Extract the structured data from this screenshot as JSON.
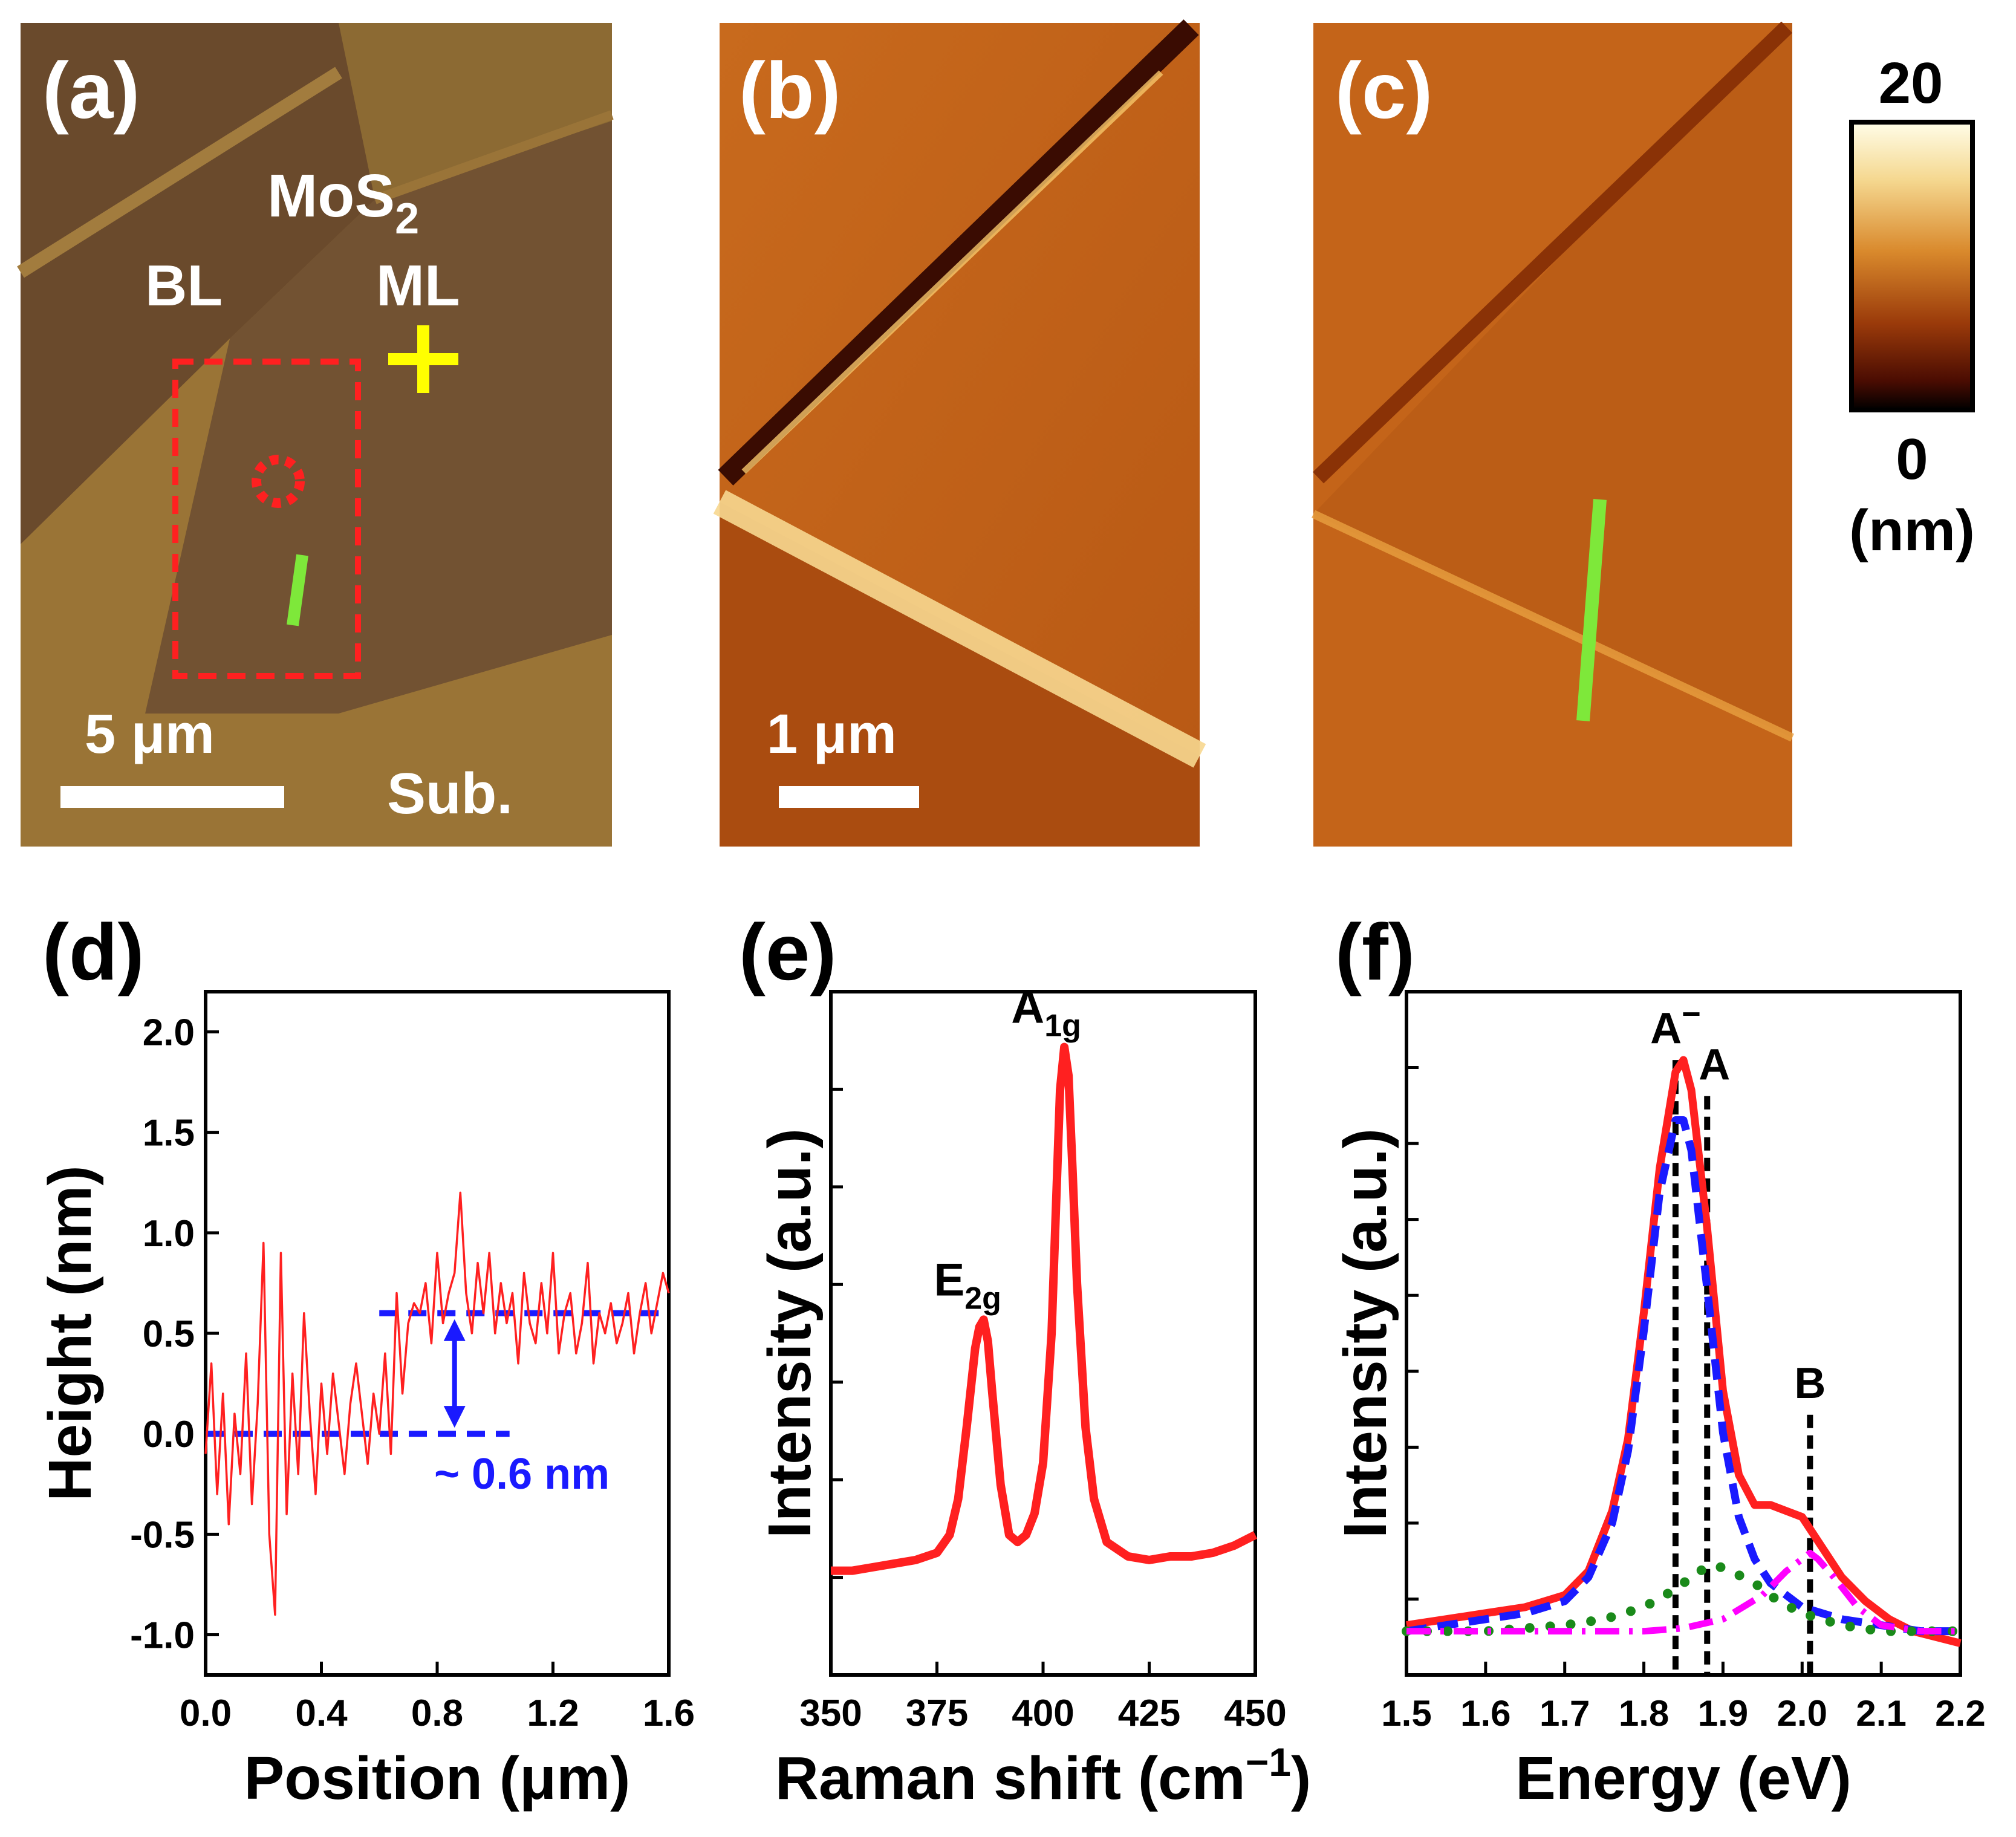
{
  "figure": {
    "panels": {
      "a": {
        "label": "(a)",
        "material": "MoS",
        "material_sub": "2",
        "bl": "BL",
        "ml": "ML",
        "sub": "Sub.",
        "scale": "5 μm"
      },
      "b": {
        "label": "(b)",
        "scale": "1 μm"
      },
      "c": {
        "label": "(c)"
      },
      "colorbar": {
        "max": "20",
        "min": "0",
        "unit": "(nm)"
      },
      "d": {
        "label": "(d)",
        "annotation": "~ 0.6 nm"
      },
      "e": {
        "label": "(e)"
      },
      "f": {
        "label": "(f)"
      }
    },
    "colors": {
      "image_bg_a": "#8a6530",
      "afm_bg": "#c46419",
      "red": "#ff2020",
      "blue": "#1a1aff",
      "green": "#1a8a1a",
      "magenta": "#ff00ff",
      "yellow": "#ffff00",
      "lime": "#7ee83a"
    }
  },
  "chart_data": [
    {
      "type": "line",
      "panel": "d",
      "title": "",
      "xlabel": "Position (μm)",
      "ylabel": "Height (nm)",
      "xlim": [
        0.0,
        1.6
      ],
      "ylim": [
        -1.2,
        2.2
      ],
      "xticks": [
        "0.0",
        "0.4",
        "0.8",
        "1.2",
        "1.6"
      ],
      "yticks": [
        "-1.0",
        "-0.5",
        "0.0",
        "0.5",
        "1.0",
        "1.5",
        "2.0"
      ],
      "series": [
        {
          "name": "height profile",
          "x": [
            0.0,
            0.02,
            0.04,
            0.06,
            0.08,
            0.1,
            0.12,
            0.14,
            0.16,
            0.18,
            0.2,
            0.22,
            0.24,
            0.26,
            0.28,
            0.3,
            0.32,
            0.34,
            0.36,
            0.38,
            0.4,
            0.42,
            0.44,
            0.46,
            0.48,
            0.5,
            0.52,
            0.54,
            0.56,
            0.58,
            0.6,
            0.62,
            0.64,
            0.66,
            0.68,
            0.7,
            0.72,
            0.74,
            0.76,
            0.78,
            0.8,
            0.82,
            0.84,
            0.86,
            0.88,
            0.9,
            0.92,
            0.94,
            0.96,
            0.98,
            1.0,
            1.02,
            1.04,
            1.06,
            1.08,
            1.1,
            1.12,
            1.14,
            1.16,
            1.18,
            1.2,
            1.22,
            1.24,
            1.26,
            1.28,
            1.3,
            1.32,
            1.34,
            1.36,
            1.38,
            1.4,
            1.42,
            1.44,
            1.46,
            1.48,
            1.5,
            1.52,
            1.54,
            1.56,
            1.58,
            1.6
          ],
          "values": [
            -0.1,
            0.35,
            -0.3,
            0.2,
            -0.45,
            0.1,
            -0.2,
            0.4,
            -0.35,
            0.15,
            0.95,
            -0.5,
            -0.9,
            0.9,
            -0.4,
            0.3,
            -0.2,
            0.6,
            0.1,
            -0.3,
            0.25,
            -0.1,
            0.3,
            0.05,
            -0.2,
            0.15,
            0.35,
            0.1,
            -0.15,
            0.2,
            0.0,
            0.4,
            -0.1,
            0.7,
            0.2,
            0.55,
            0.65,
            0.6,
            0.75,
            0.45,
            0.9,
            0.55,
            0.7,
            0.8,
            1.2,
            0.7,
            0.5,
            0.85,
            0.6,
            0.9,
            0.5,
            0.75,
            0.55,
            0.7,
            0.35,
            0.8,
            0.55,
            0.45,
            0.75,
            0.5,
            0.9,
            0.4,
            0.6,
            0.7,
            0.4,
            0.55,
            0.85,
            0.35,
            0.6,
            0.5,
            0.65,
            0.45,
            0.55,
            0.7,
            0.4,
            0.6,
            0.75,
            0.5,
            0.65,
            0.8,
            0.7
          ],
          "color": "red"
        }
      ],
      "guides": {
        "lower_level": 0.0,
        "upper_level": 0.6,
        "arrow_x": 0.86,
        "annotation": "~ 0.6 nm"
      }
    },
    {
      "type": "line",
      "panel": "e",
      "title": "",
      "xlabel": "Raman shift (cm",
      "xlabel_sup": "−1",
      "xlabel_end": ")",
      "ylabel": "Intensity (a.u.)",
      "xlim": [
        350,
        450
      ],
      "xticks": [
        "350",
        "375",
        "400",
        "425",
        "450"
      ],
      "series": [
        {
          "name": "Raman spectrum",
          "x": [
            350,
            355,
            360,
            365,
            370,
            375,
            378,
            380,
            382,
            384,
            385,
            386,
            387,
            388,
            390,
            392,
            394,
            396,
            398,
            400,
            402,
            403,
            404,
            405,
            406,
            407,
            408,
            410,
            412,
            415,
            420,
            425,
            430,
            435,
            440,
            445,
            450
          ],
          "values": [
            0.05,
            0.05,
            0.055,
            0.06,
            0.065,
            0.075,
            0.1,
            0.15,
            0.25,
            0.36,
            0.39,
            0.4,
            0.37,
            0.3,
            0.17,
            0.1,
            0.09,
            0.1,
            0.13,
            0.2,
            0.38,
            0.55,
            0.72,
            0.78,
            0.74,
            0.6,
            0.45,
            0.25,
            0.15,
            0.09,
            0.07,
            0.065,
            0.07,
            0.07,
            0.075,
            0.085,
            0.1
          ],
          "color": "red"
        }
      ],
      "annotations": [
        {
          "text": "E",
          "sub": "2g",
          "x": 386.5
        },
        {
          "text": "A",
          "sub": "1g",
          "x": 405
        }
      ]
    },
    {
      "type": "line",
      "panel": "f",
      "title": "",
      "xlabel": "Energy (eV)",
      "ylabel": "Intensity (a.u.)",
      "xlim": [
        1.5,
        2.2
      ],
      "xticks": [
        "1.5",
        "1.6",
        "1.7",
        "1.8",
        "1.9",
        "2.0",
        "2.1",
        "2.2"
      ],
      "series": [
        {
          "name": "measured PL",
          "x": [
            1.5,
            1.55,
            1.6,
            1.65,
            1.7,
            1.73,
            1.76,
            1.78,
            1.8,
            1.82,
            1.84,
            1.85,
            1.86,
            1.88,
            1.9,
            1.92,
            1.94,
            1.96,
            1.98,
            2.0,
            2.02,
            2.05,
            2.08,
            2.11,
            2.14,
            2.17,
            2.2
          ],
          "values": [
            0.06,
            0.07,
            0.08,
            0.09,
            0.11,
            0.15,
            0.25,
            0.37,
            0.58,
            0.82,
            0.98,
            1.0,
            0.95,
            0.72,
            0.45,
            0.31,
            0.26,
            0.26,
            0.25,
            0.24,
            0.2,
            0.14,
            0.1,
            0.07,
            0.05,
            0.04,
            0.03
          ],
          "color": "red",
          "style": "solid"
        },
        {
          "name": "A− component",
          "x": [
            1.5,
            1.55,
            1.6,
            1.65,
            1.7,
            1.73,
            1.76,
            1.78,
            1.8,
            1.82,
            1.84,
            1.85,
            1.86,
            1.88,
            1.9,
            1.92,
            1.94,
            1.96,
            1.98,
            2.0,
            2.05,
            2.1,
            2.15,
            2.2
          ],
          "values": [
            0.05,
            0.06,
            0.07,
            0.08,
            0.1,
            0.14,
            0.23,
            0.35,
            0.55,
            0.78,
            0.9,
            0.9,
            0.85,
            0.62,
            0.38,
            0.24,
            0.17,
            0.13,
            0.11,
            0.09,
            0.07,
            0.06,
            0.05,
            0.05
          ],
          "color": "blue",
          "style": "dashed"
        },
        {
          "name": "A component",
          "x": [
            1.5,
            1.55,
            1.6,
            1.65,
            1.7,
            1.75,
            1.8,
            1.84,
            1.87,
            1.89,
            1.91,
            1.94,
            1.97,
            2.0,
            2.05,
            2.1,
            2.15,
            2.2
          ],
          "values": [
            0.05,
            0.05,
            0.05,
            0.055,
            0.06,
            0.07,
            0.09,
            0.12,
            0.15,
            0.16,
            0.15,
            0.13,
            0.1,
            0.08,
            0.06,
            0.05,
            0.05,
            0.05
          ],
          "color": "green",
          "style": "dotted"
        },
        {
          "name": "B component",
          "x": [
            1.5,
            1.6,
            1.7,
            1.8,
            1.85,
            1.9,
            1.95,
            1.98,
            2.0,
            2.01,
            2.02,
            2.04,
            2.07,
            2.1,
            2.15,
            2.2
          ],
          "values": [
            0.05,
            0.05,
            0.05,
            0.05,
            0.055,
            0.07,
            0.11,
            0.15,
            0.17,
            0.18,
            0.17,
            0.14,
            0.09,
            0.06,
            0.05,
            0.05
          ],
          "color": "magenta",
          "style": "dashdot"
        }
      ],
      "markers": [
        {
          "text": "A",
          "sup": "−",
          "x": 1.84
        },
        {
          "text": "A",
          "sup": "",
          "x": 1.88
        },
        {
          "text": "B",
          "sup": "",
          "x": 2.01
        }
      ]
    }
  ]
}
